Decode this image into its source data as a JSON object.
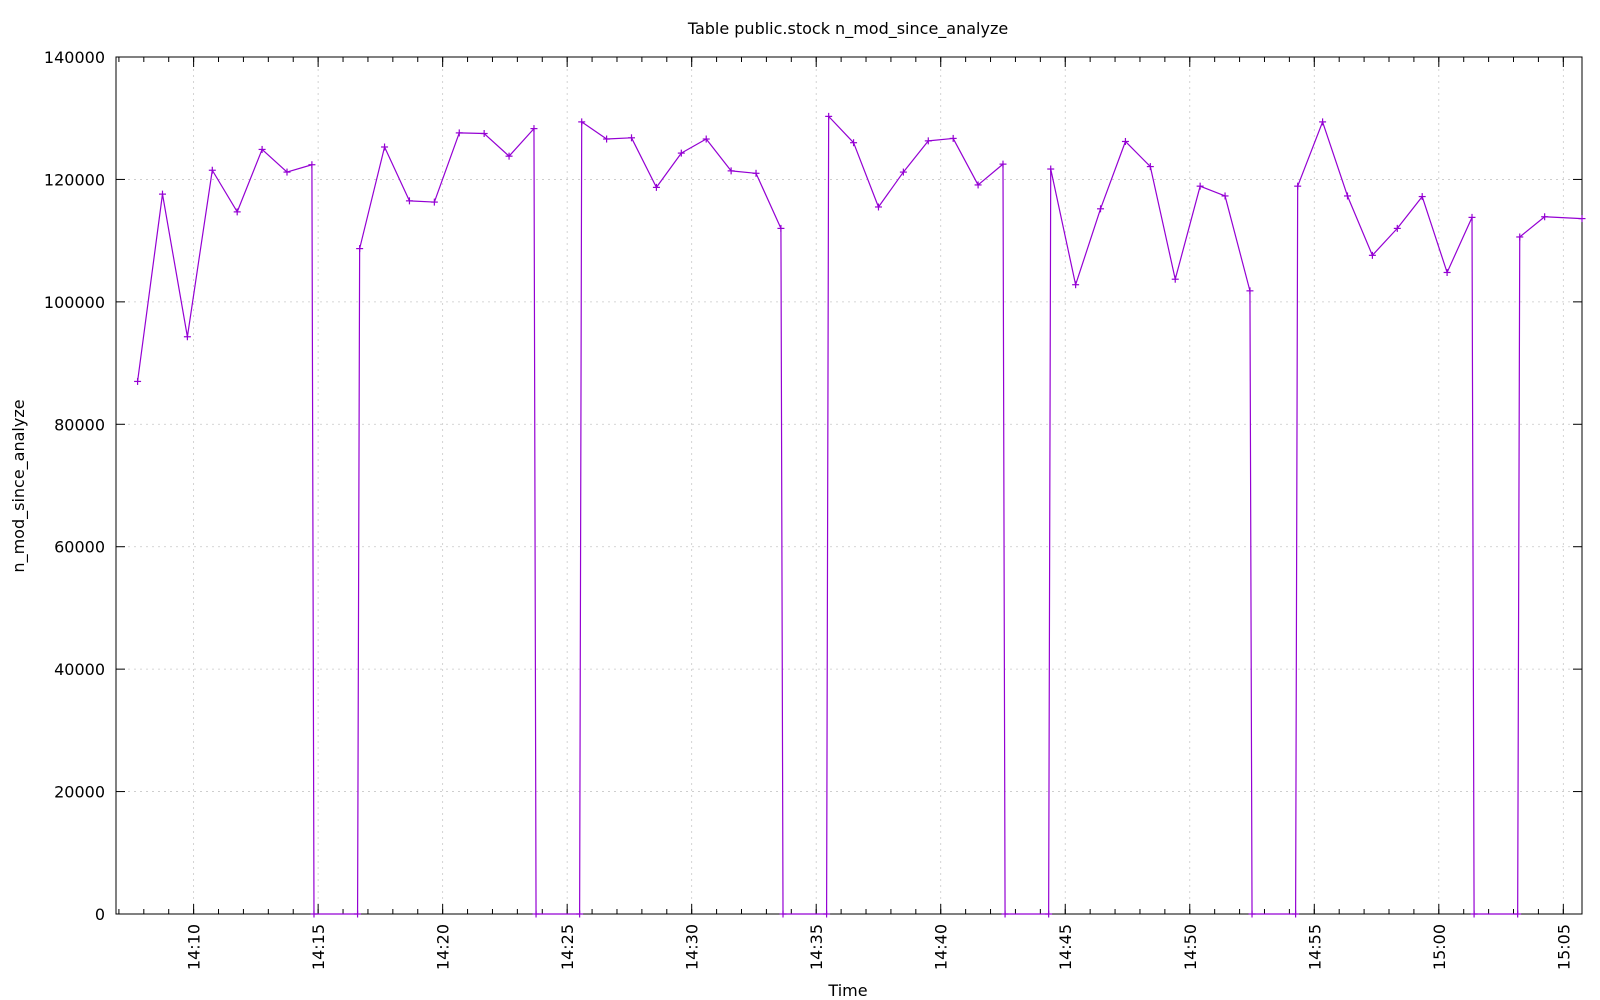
{
  "chart_data": {
    "type": "line",
    "title": "Table public.stock n_mod_since_analyze",
    "xlabel": "Time",
    "ylabel": "n_mod_since_analyze",
    "ylim": [
      0,
      140000
    ],
    "y_ticks": [
      0,
      20000,
      40000,
      60000,
      80000,
      100000,
      120000,
      140000
    ],
    "xlim": [
      "14:06:53",
      "15:05:45"
    ],
    "x_ticks": [
      "14:10",
      "14:15",
      "14:20",
      "14:25",
      "14:30",
      "14:35",
      "14:40",
      "14:45",
      "14:50",
      "14:55",
      "15:00",
      "15:05"
    ],
    "x_minor_tick_step_minutes": 1,
    "grid": true,
    "line_color": "#9400d3",
    "marker": "plus",
    "series": [
      {
        "x": [
          "14:07:45",
          "14:08:45",
          "14:09:45",
          "14:10:45",
          "14:11:45",
          "14:12:45",
          "14:13:45",
          "14:14:45",
          "14:14:50",
          "14:16:35",
          "14:16:40",
          "14:17:40",
          "14:18:40",
          "14:19:40",
          "14:20:40",
          "14:21:40",
          "14:22:40",
          "14:23:40",
          "14:23:45",
          "14:25:30",
          "14:25:35",
          "14:26:35",
          "14:27:35",
          "14:28:35",
          "14:29:35",
          "14:30:35",
          "14:31:35",
          "14:32:35",
          "14:33:35",
          "14:33:40",
          "14:35:25",
          "14:35:30",
          "14:36:30",
          "14:37:30",
          "14:38:30",
          "14:39:30",
          "14:40:30",
          "14:41:30",
          "14:42:30",
          "14:42:35",
          "14:44:20",
          "14:44:25",
          "14:45:25",
          "14:46:25",
          "14:47:25",
          "14:48:25",
          "14:49:25",
          "14:50:25",
          "14:51:25",
          "14:52:25",
          "14:52:30",
          "14:54:15",
          "14:54:20",
          "14:55:20",
          "14:56:20",
          "14:57:20",
          "14:58:20",
          "14:59:20",
          "15:00:20",
          "15:01:20",
          "15:01:25",
          "15:03:10",
          "15:03:15",
          "15:04:15",
          "15:05:45"
        ],
        "values": [
          87000,
          117600,
          94300,
          121500,
          114700,
          124900,
          121200,
          122400,
          0,
          0,
          108700,
          125300,
          116500,
          116300,
          127600,
          127500,
          123800,
          128300,
          0,
          0,
          129400,
          126600,
          126800,
          118700,
          124300,
          126600,
          121400,
          121000,
          112000,
          0,
          0,
          130300,
          126000,
          115500,
          121200,
          126300,
          126700,
          119100,
          122500,
          0,
          0,
          121700,
          102800,
          115200,
          126200,
          122100,
          103700,
          118900,
          117300,
          101800,
          0,
          0,
          118900,
          129400,
          117300,
          107600,
          112000,
          117200,
          104800,
          113800,
          0,
          0,
          110600,
          113900,
          113600
        ]
      }
    ]
  }
}
